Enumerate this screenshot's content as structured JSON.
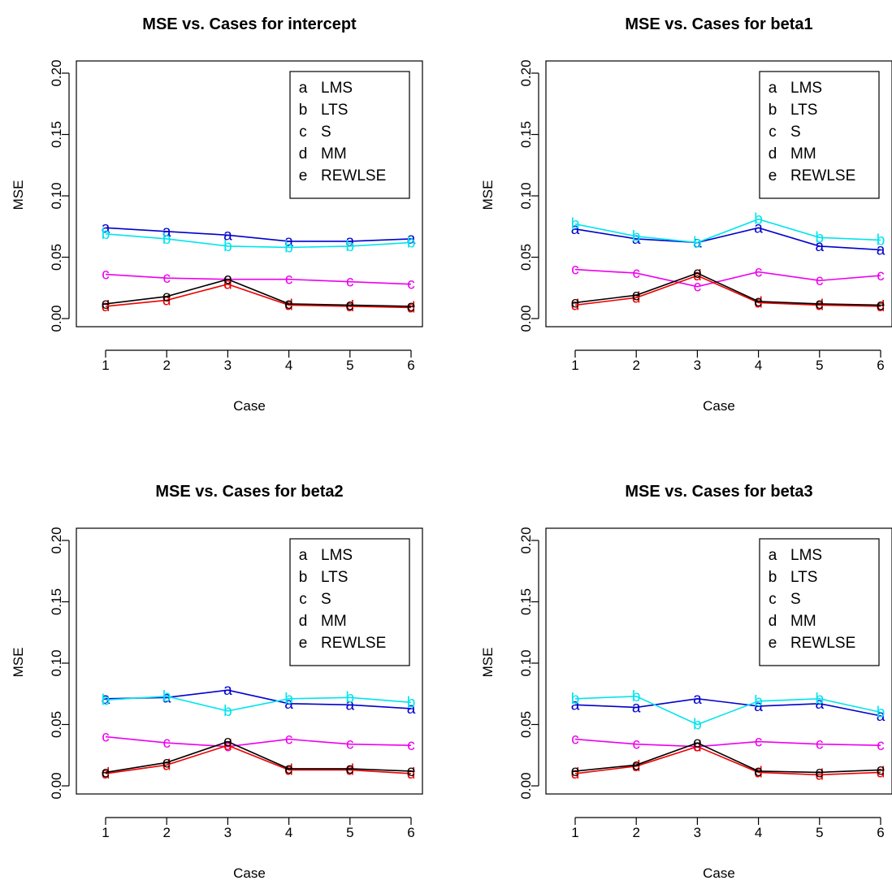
{
  "chart_data": [
    {
      "type": "line",
      "title": "MSE vs. Cases for intercept",
      "xlabel": "Case",
      "ylabel": "MSE",
      "x": [
        1,
        2,
        3,
        4,
        5,
        6
      ],
      "xlim": [
        1,
        6
      ],
      "ylim": [
        0,
        0.2
      ],
      "xticks": [
        "1",
        "2",
        "3",
        "4",
        "5",
        "6"
      ],
      "yticks": [
        "0.00",
        "0.05",
        "0.10",
        "0.15",
        "0.20"
      ],
      "grid": false,
      "legend_position": "top-right",
      "series": [
        {
          "name": "LMS",
          "symbol": "a",
          "color": "#0000CD",
          "values": [
            0.074,
            0.071,
            0.068,
            0.063,
            0.063,
            0.065
          ]
        },
        {
          "name": "LTS",
          "symbol": "b",
          "color": "#00E5EE",
          "values": [
            0.069,
            0.065,
            0.059,
            0.058,
            0.059,
            0.062
          ]
        },
        {
          "name": "S",
          "symbol": "c",
          "color": "#EE00EE",
          "values": [
            0.036,
            0.033,
            0.032,
            0.032,
            0.03,
            0.028
          ]
        },
        {
          "name": "MM",
          "symbol": "d",
          "color": "#EE0000",
          "values": [
            0.01,
            0.015,
            0.028,
            0.011,
            0.01,
            0.009
          ]
        },
        {
          "name": "REWLSE",
          "symbol": "e",
          "color": "#000000",
          "values": [
            0.012,
            0.018,
            0.032,
            0.012,
            0.011,
            0.01
          ]
        }
      ]
    },
    {
      "type": "line",
      "title": "MSE vs. Cases for beta1",
      "xlabel": "Case",
      "ylabel": "MSE",
      "x": [
        1,
        2,
        3,
        4,
        5,
        6
      ],
      "xlim": [
        1,
        6
      ],
      "ylim": [
        0,
        0.2
      ],
      "xticks": [
        "1",
        "2",
        "3",
        "4",
        "5",
        "6"
      ],
      "yticks": [
        "0.00",
        "0.05",
        "0.10",
        "0.15",
        "0.20"
      ],
      "grid": false,
      "legend_position": "top-right",
      "series": [
        {
          "name": "LMS",
          "symbol": "a",
          "color": "#0000CD",
          "values": [
            0.073,
            0.065,
            0.062,
            0.074,
            0.059,
            0.056
          ]
        },
        {
          "name": "LTS",
          "symbol": "b",
          "color": "#00E5EE",
          "values": [
            0.077,
            0.067,
            0.062,
            0.081,
            0.066,
            0.064
          ]
        },
        {
          "name": "S",
          "symbol": "c",
          "color": "#EE00EE",
          "values": [
            0.04,
            0.037,
            0.026,
            0.038,
            0.031,
            0.035
          ]
        },
        {
          "name": "MM",
          "symbol": "d",
          "color": "#EE0000",
          "values": [
            0.011,
            0.017,
            0.035,
            0.013,
            0.011,
            0.01
          ]
        },
        {
          "name": "REWLSE",
          "symbol": "e",
          "color": "#000000",
          "values": [
            0.013,
            0.019,
            0.037,
            0.014,
            0.012,
            0.011
          ]
        }
      ]
    },
    {
      "type": "line",
      "title": "MSE vs. Cases for beta2",
      "xlabel": "Case",
      "ylabel": "MSE",
      "x": [
        1,
        2,
        3,
        4,
        5,
        6
      ],
      "xlim": [
        1,
        6
      ],
      "ylim": [
        0,
        0.2
      ],
      "xticks": [
        "1",
        "2",
        "3",
        "4",
        "5",
        "6"
      ],
      "yticks": [
        "0.00",
        "0.05",
        "0.10",
        "0.15",
        "0.20"
      ],
      "grid": false,
      "legend_position": "top-right",
      "series": [
        {
          "name": "LMS",
          "symbol": "a",
          "color": "#0000CD",
          "values": [
            0.071,
            0.072,
            0.078,
            0.067,
            0.066,
            0.063
          ]
        },
        {
          "name": "LTS",
          "symbol": "b",
          "color": "#00E5EE",
          "values": [
            0.07,
            0.073,
            0.061,
            0.071,
            0.072,
            0.068
          ]
        },
        {
          "name": "S",
          "symbol": "c",
          "color": "#EE00EE",
          "values": [
            0.04,
            0.035,
            0.032,
            0.038,
            0.034,
            0.033
          ]
        },
        {
          "name": "MM",
          "symbol": "d",
          "color": "#EE0000",
          "values": [
            0.01,
            0.017,
            0.033,
            0.013,
            0.013,
            0.01
          ]
        },
        {
          "name": "REWLSE",
          "symbol": "e",
          "color": "#000000",
          "values": [
            0.011,
            0.019,
            0.036,
            0.014,
            0.014,
            0.012
          ]
        }
      ]
    },
    {
      "type": "line",
      "title": "MSE vs. Cases for beta3",
      "xlabel": "Case",
      "ylabel": "MSE",
      "x": [
        1,
        2,
        3,
        4,
        5,
        6
      ],
      "xlim": [
        1,
        6
      ],
      "ylim": [
        0,
        0.2
      ],
      "xticks": [
        "1",
        "2",
        "3",
        "4",
        "5",
        "6"
      ],
      "yticks": [
        "0.00",
        "0.05",
        "0.10",
        "0.15",
        "0.20"
      ],
      "grid": false,
      "legend_position": "top-right",
      "series": [
        {
          "name": "LMS",
          "symbol": "a",
          "color": "#0000CD",
          "values": [
            0.066,
            0.064,
            0.071,
            0.065,
            0.067,
            0.057
          ]
        },
        {
          "name": "LTS",
          "symbol": "b",
          "color": "#00E5EE",
          "values": [
            0.071,
            0.073,
            0.05,
            0.069,
            0.071,
            0.06
          ]
        },
        {
          "name": "S",
          "symbol": "c",
          "color": "#EE00EE",
          "values": [
            0.038,
            0.034,
            0.032,
            0.036,
            0.034,
            0.033
          ]
        },
        {
          "name": "MM",
          "symbol": "d",
          "color": "#EE0000",
          "values": [
            0.01,
            0.016,
            0.032,
            0.011,
            0.009,
            0.011
          ]
        },
        {
          "name": "REWLSE",
          "symbol": "e",
          "color": "#000000",
          "values": [
            0.012,
            0.017,
            0.035,
            0.012,
            0.011,
            0.013
          ]
        }
      ]
    }
  ]
}
